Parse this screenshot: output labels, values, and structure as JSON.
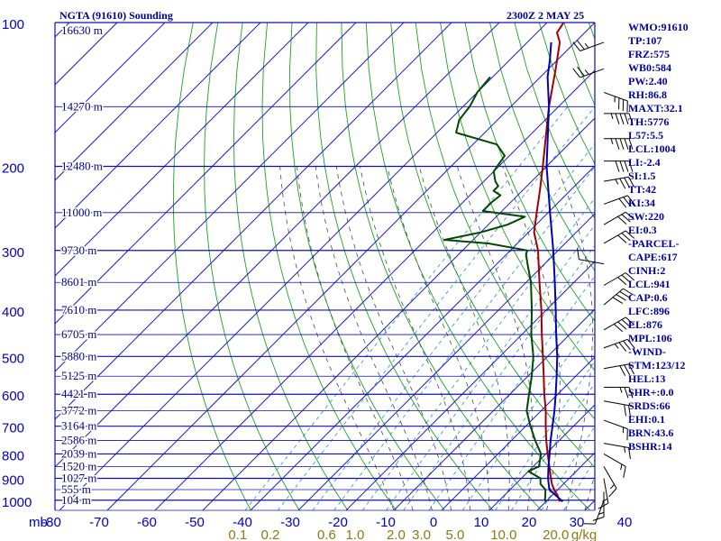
{
  "header": {
    "station": "NGTA (91610) Sounding",
    "time": "2300Z  2 MAY 25"
  },
  "indices": [
    "WMO:91610",
    "TP:107",
    "FRZ:575",
    "WB0:584",
    "PW:2.40",
    "RH:86.8",
    "MAXT:32.1",
    "TH:5776",
    "L57:5.5",
    "LCL:1004",
    "LI:-2.4",
    "SI:1.5",
    "TT:42",
    "KI:34",
    "SW:220",
    "EI:0.3",
    "-PARCEL-",
    "CAPE:617",
    "CINH:2",
    "LCL:941",
    "CAP:0.6",
    "LFC:896",
    "EL:876",
    "MPL:106",
    "-WIND-",
    "STM:123/12",
    "HEL:13",
    "SHR+:0.0",
    "SRDS:66",
    "EHI:0.1",
    "BRN:43.6",
    "BSHR:14"
  ],
  "chart_data": {
    "type": "skew-t",
    "xlabel": "",
    "ylabel": "mb",
    "pressure_ticks": [
      100,
      200,
      300,
      400,
      500,
      600,
      700,
      800,
      900,
      1000
    ],
    "pressure_tick_labels": [
      "100",
      "200",
      "300",
      "400",
      "500",
      "600",
      "700",
      "800",
      "900",
      "1000"
    ],
    "temperature_ticks": [
      -80,
      -70,
      -60,
      -50,
      -40,
      -30,
      -20,
      -10,
      0,
      10,
      20,
      30,
      40
    ],
    "temperature_tick_labels": [
      "-80",
      "-70",
      "-60",
      "-50",
      "-40",
      "-30",
      "-20",
      "-10",
      "0",
      "10",
      "20",
      "30",
      "40"
    ],
    "mixing_ratio_labels": [
      "0.1",
      "0.2",
      "0.6",
      "1.0",
      "2.0",
      "3.0",
      "5.0",
      "10.0",
      "20.0",
      "g/kg"
    ],
    "height_levels": [
      {
        "p": 104,
        "label": "16630 m"
      },
      {
        "p": 150,
        "label": "14270 m"
      },
      {
        "p": 200,
        "label": "12480 m"
      },
      {
        "p": 250,
        "label": "11000 m"
      },
      {
        "p": 300,
        "label": "9730 m"
      },
      {
        "p": 350,
        "label": "8601 m"
      },
      {
        "p": 400,
        "label": "7610 m"
      },
      {
        "p": 450,
        "label": "6705 m"
      },
      {
        "p": 500,
        "label": "5880 m"
      },
      {
        "p": 550,
        "label": "5125 m"
      },
      {
        "p": 600,
        "label": "4421 m"
      },
      {
        "p": 650,
        "label": "3772 m"
      },
      {
        "p": 700,
        "label": "3164 m"
      },
      {
        "p": 750,
        "label": "2586 m"
      },
      {
        "p": 800,
        "label": "2039 m"
      },
      {
        "p": 850,
        "label": "1520 m"
      },
      {
        "p": 900,
        "label": "1027 m"
      },
      {
        "p": 950,
        "label": "555 m"
      },
      {
        "p": 1000,
        "label": "104 m"
      }
    ],
    "series": [
      {
        "color": "#a00000",
        "points": [
          [
            1006,
            23.0
          ],
          [
            1000,
            22.5
          ],
          [
            975,
            21.0
          ],
          [
            950,
            19.2
          ],
          [
            925,
            17.6
          ],
          [
            900,
            16.2
          ],
          [
            850,
            13.4
          ],
          [
            800,
            10.4
          ],
          [
            750,
            7.3
          ],
          [
            700,
            4.2
          ],
          [
            650,
            1.0
          ],
          [
            600,
            -2.8
          ],
          [
            550,
            -6.7
          ],
          [
            500,
            -11.0
          ],
          [
            450,
            -15.8
          ],
          [
            400,
            -21.0
          ],
          [
            350,
            -27.2
          ],
          [
            300,
            -34.2
          ],
          [
            275,
            -38.8
          ],
          [
            250,
            -42.4
          ],
          [
            225,
            -46.3
          ],
          [
            200,
            -50.8
          ],
          [
            175,
            -56.0
          ],
          [
            150,
            -62.0
          ],
          [
            125,
            -68.5
          ],
          [
            110,
            -73.2
          ],
          [
            105,
            -75.8
          ],
          [
            100,
            -76.5
          ]
        ]
      },
      {
        "color": "#004800",
        "points": [
          [
            1006,
            20.0
          ],
          [
            1000,
            19.5
          ],
          [
            975,
            18.5
          ],
          [
            950,
            17.4
          ],
          [
            925,
            15.2
          ],
          [
            900,
            14.0
          ],
          [
            870,
            10.0
          ],
          [
            850,
            11.2
          ],
          [
            800,
            9.0
          ],
          [
            750,
            5.0
          ],
          [
            700,
            1.0
          ],
          [
            650,
            -3.0
          ],
          [
            600,
            -6.0
          ],
          [
            550,
            -9.2
          ],
          [
            500,
            -13.0
          ],
          [
            450,
            -18.0
          ],
          [
            400,
            -23.0
          ],
          [
            350,
            -29.0
          ],
          [
            320,
            -33.6
          ],
          [
            305,
            -36.0
          ],
          [
            300,
            -36.4
          ],
          [
            290,
            -46.0
          ],
          [
            285,
            -56.0
          ],
          [
            275,
            -50.0
          ],
          [
            265,
            -46.0
          ],
          [
            255,
            -44.0
          ],
          [
            248,
            -54.0
          ],
          [
            238,
            -54.0
          ],
          [
            230,
            -53.6
          ],
          [
            225,
            -56.0
          ],
          [
            220,
            -56.0
          ],
          [
            215,
            -57.6
          ],
          [
            205,
            -60.0
          ],
          [
            190,
            -61.0
          ],
          [
            180,
            -65.0
          ],
          [
            170,
            -76.0
          ],
          [
            160,
            -78.0
          ],
          [
            150,
            -78.6
          ],
          [
            140,
            -80.0
          ],
          [
            130,
            -80.5
          ]
        ]
      },
      {
        "color": "#0000b4",
        "points": [
          [
            1006,
            23.5
          ],
          [
            950,
            18.2
          ],
          [
            900,
            15.6
          ],
          [
            850,
            13.2
          ],
          [
            800,
            10.8
          ],
          [
            750,
            8.2
          ],
          [
            700,
            5.6
          ],
          [
            650,
            2.8
          ],
          [
            600,
            -0.4
          ],
          [
            550,
            -4.0
          ],
          [
            500,
            -8.0
          ],
          [
            450,
            -12.8
          ],
          [
            400,
            -18.0
          ],
          [
            350,
            -24.0
          ],
          [
            300,
            -31.0
          ],
          [
            250,
            -39.6
          ],
          [
            200,
            -50.0
          ],
          [
            150,
            -62.0
          ],
          [
            130,
            -68.5
          ],
          [
            120,
            -71.5
          ],
          [
            110,
            -75.0
          ]
        ]
      }
    ],
    "wind_barbs": [
      {
        "p": 110,
        "dir": 250,
        "spd": 25
      },
      {
        "p": 125,
        "dir": 250,
        "spd": 25
      },
      {
        "p": 140,
        "dir": 110,
        "spd": 35
      },
      {
        "p": 155,
        "dir": 90,
        "spd": 45
      },
      {
        "p": 175,
        "dir": 90,
        "spd": 45
      },
      {
        "p": 195,
        "dir": 90,
        "spd": 40
      },
      {
        "p": 215,
        "dir": 80,
        "spd": 35
      },
      {
        "p": 240,
        "dir": 70,
        "spd": 30
      },
      {
        "p": 265,
        "dir": 60,
        "spd": 30
      },
      {
        "p": 290,
        "dir": 60,
        "spd": 30
      },
      {
        "p": 320,
        "dir": 280,
        "spd": 10
      },
      {
        "p": 355,
        "dir": 60,
        "spd": 30
      },
      {
        "p": 390,
        "dir": 50,
        "spd": 40
      },
      {
        "p": 440,
        "dir": 60,
        "spd": 40
      },
      {
        "p": 480,
        "dir": 70,
        "spd": 35
      },
      {
        "p": 530,
        "dir": 80,
        "spd": 30
      },
      {
        "p": 580,
        "dir": 90,
        "spd": 25
      },
      {
        "p": 620,
        "dir": 100,
        "spd": 20
      },
      {
        "p": 680,
        "dir": 110,
        "spd": 15
      },
      {
        "p": 760,
        "dir": 100,
        "spd": 15
      },
      {
        "p": 800,
        "dir": 120,
        "spd": 15
      },
      {
        "p": 850,
        "dir": 150,
        "spd": 15
      },
      {
        "p": 900,
        "dir": 170,
        "spd": 15
      },
      {
        "p": 960,
        "dir": 180,
        "spd": 15
      },
      {
        "p": 1000,
        "dir": 200,
        "spd": 10
      }
    ]
  }
}
